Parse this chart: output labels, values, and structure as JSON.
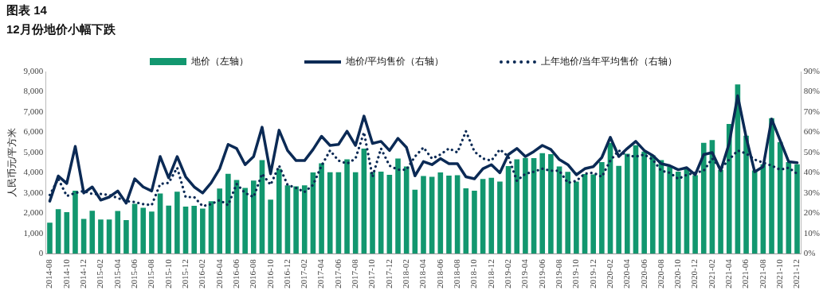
{
  "chart_data": {
    "type": "bar",
    "title": "图表 14",
    "subtitle": "12月份地价小幅下跌",
    "ylabel": "人民币元/平方米",
    "categories": [
      "2014-08",
      null,
      "2014-10",
      null,
      "2014-12",
      null,
      "2015-02",
      null,
      "2015-04",
      null,
      "2015-06",
      null,
      "2015-08",
      null,
      "2015-10",
      null,
      "2015-12",
      null,
      "2016-02",
      null,
      "2016-04",
      null,
      "2016-06",
      null,
      "2016-08",
      null,
      "2016-10",
      null,
      "2016-12",
      null,
      "2017-02",
      null,
      "2017-04",
      null,
      "2017-06",
      null,
      "2017-08",
      null,
      "2017-10",
      null,
      "2017-12",
      null,
      "2018-02",
      null,
      "2018-04",
      null,
      "2018-06",
      null,
      "2018-08",
      null,
      "2018-10",
      null,
      "2018-12",
      null,
      "2019-02",
      null,
      "2019-04",
      null,
      "2019-06",
      null,
      "2019-08",
      null,
      "2019-10",
      null,
      "2019-12",
      null,
      "2020-02",
      null,
      "2020-04",
      null,
      "2020-06",
      null,
      "2020-08",
      null,
      "2020-10",
      null,
      "2020-12",
      null,
      "2021-02",
      null,
      "2021-04",
      null,
      "2021-06",
      null,
      "2021-08",
      null,
      "2021-10",
      null,
      "2021-12"
    ],
    "series": [
      {
        "name": "地价（左轴）",
        "color": "#12976f",
        "values": [
          1530,
          2200,
          2050,
          3110,
          1720,
          2120,
          1690,
          1690,
          2110,
          1660,
          2470,
          2270,
          2080,
          2980,
          2380,
          3060,
          2330,
          2370,
          2230,
          2590,
          3220,
          3950,
          3640,
          3250,
          3610,
          4620,
          2670,
          4190,
          3380,
          3330,
          3380,
          4020,
          4470,
          4030,
          4030,
          4660,
          4030,
          5190,
          4030,
          4060,
          3900,
          4700,
          4310,
          3160,
          3840,
          3800,
          4020,
          3860,
          3880,
          3230,
          3110,
          3690,
          3750,
          3560,
          4330,
          4660,
          4730,
          4720,
          4970,
          4920,
          4310,
          4050,
          3560,
          3940,
          3920,
          4530,
          5480,
          4340,
          4940,
          5360,
          5050,
          4860,
          4620,
          4310,
          4060,
          4190,
          3880,
          5480,
          5620,
          4140,
          6410,
          8360,
          5830,
          4110,
          4420,
          6690,
          5520,
          4530,
          4420
        ]
      },
      {
        "name": "地价/平均售价（右轴）",
        "type": "line",
        "axis": "y2",
        "line_style": "solid",
        "color": "#0b2a55",
        "values": [
          26,
          38.4,
          34.7,
          53,
          30,
          33,
          26.5,
          28,
          31,
          25,
          37,
          33,
          31,
          48,
          37.5,
          48,
          38,
          33,
          30,
          35,
          42,
          54,
          52,
          44,
          48,
          62.5,
          39.5,
          61,
          51,
          46,
          46,
          51.5,
          58,
          53.5,
          54,
          60.5,
          53.5,
          68,
          54.5,
          55.5,
          51,
          57,
          52.5,
          38.5,
          45.5,
          44,
          47,
          44.5,
          44.5,
          38,
          37,
          42,
          44,
          40,
          49,
          52,
          48,
          50.5,
          53.5,
          51.5,
          46.5,
          44,
          39,
          42,
          43,
          47.5,
          57.5,
          48,
          52,
          55.5,
          51,
          48.5,
          44.5,
          43.5,
          41.5,
          42.5,
          39,
          49,
          50,
          41,
          54.5,
          78,
          57.5,
          40.5,
          43,
          66.5,
          56,
          45.5,
          45
        ]
      },
      {
        "name": "上年地价/当年平均售价（右轴）",
        "type": "line",
        "axis": "y2",
        "line_style": "dotted",
        "color": "#0b2a55",
        "values": [
          29,
          37,
          28.5,
          30,
          31,
          29.5,
          29.5,
          29,
          27.5,
          26,
          25.5,
          24.5,
          24,
          34.5,
          35,
          42.5,
          28,
          28,
          23.5,
          24.5,
          26.5,
          24,
          34.5,
          30,
          28,
          39.5,
          34,
          43.5,
          34,
          32.5,
          30.5,
          34,
          43.5,
          51,
          46,
          44.5,
          47,
          60,
          38,
          52,
          43.5,
          41.5,
          41.5,
          48,
          52.5,
          47,
          49,
          52,
          50,
          60.5,
          50.5,
          47,
          46,
          51.5,
          48,
          36,
          39.5,
          40.5,
          42,
          41,
          41,
          35,
          36,
          39.5,
          40,
          38,
          46,
          51,
          48.5,
          48,
          49,
          46.5,
          41,
          40,
          37,
          39,
          40,
          41,
          47,
          42,
          46.5,
          51,
          49.5,
          46.5,
          45,
          43.5,
          41.5,
          42.5,
          39.5
        ]
      }
    ],
    "ylim": [
      0,
      9000
    ],
    "yticks": [
      0,
      {
        "value": 1000,
        "label": "1,000"
      },
      {
        "value": 2000,
        "label": "2,000"
      },
      {
        "value": 3000,
        "label": "3,000"
      },
      {
        "value": 4000,
        "label": "4,000"
      },
      {
        "value": 5000,
        "label": "5,000"
      },
      {
        "value": 6000,
        "label": "6,000"
      },
      {
        "value": 7000,
        "label": "7,000"
      },
      {
        "value": 8000,
        "label": "8,000"
      },
      {
        "value": 9000,
        "label": "9,000"
      }
    ],
    "y2lim": [
      0,
      90
    ],
    "y2ticks": [
      {
        "value": 0,
        "label": "0%"
      },
      {
        "value": 10,
        "label": "10%"
      },
      {
        "value": 20,
        "label": "20%"
      },
      {
        "value": 30,
        "label": "30%"
      },
      {
        "value": 40,
        "label": "40%"
      },
      {
        "value": 50,
        "label": "50%"
      },
      {
        "value": 60,
        "label": "60%"
      },
      {
        "value": 70,
        "label": "70%"
      },
      {
        "value": 80,
        "label": "80%"
      },
      {
        "value": 90,
        "label": "90%"
      }
    ],
    "legend": "top",
    "marker": "none"
  }
}
